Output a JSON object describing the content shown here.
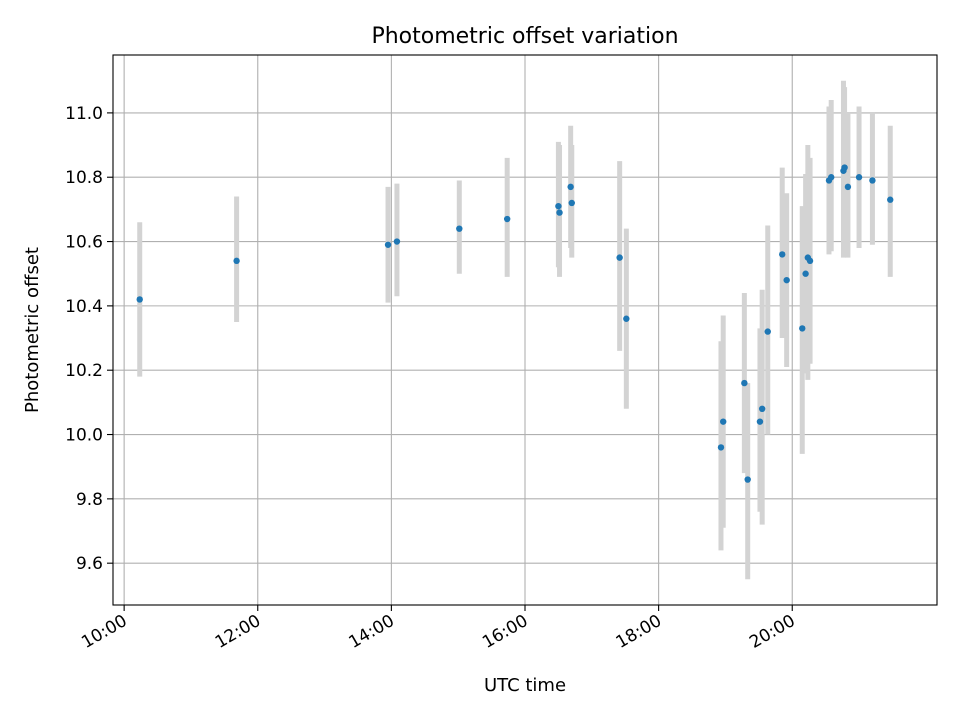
{
  "chart_data": {
    "type": "scatter",
    "title": "Photometric offset variation",
    "xlabel": "UTC time",
    "ylabel": "Photometric offset",
    "xlim": [
      "09:50",
      "22:10"
    ],
    "ylim": [
      9.47,
      11.18
    ],
    "xticks": [
      "10:00",
      "12:00",
      "14:00",
      "16:00",
      "18:00",
      "20:00"
    ],
    "yticks": [
      "9.6",
      "9.8",
      "10.0",
      "10.2",
      "10.4",
      "10.6",
      "10.8",
      "11.0"
    ],
    "grid": true,
    "colors": {
      "point": "#1f77b4",
      "errorbar": "#d3d3d3",
      "grid": "#b0b0b0"
    },
    "points": [
      {
        "x": "10:14",
        "y": 10.42,
        "ylow": 10.18,
        "yhigh": 10.66
      },
      {
        "x": "11:41",
        "y": 10.54,
        "ylow": 10.35,
        "yhigh": 10.74
      },
      {
        "x": "13:57",
        "y": 10.59,
        "ylow": 10.41,
        "yhigh": 10.77
      },
      {
        "x": "14:05",
        "y": 10.6,
        "ylow": 10.43,
        "yhigh": 10.78
      },
      {
        "x": "15:01",
        "y": 10.64,
        "ylow": 10.5,
        "yhigh": 10.79
      },
      {
        "x": "15:44",
        "y": 10.67,
        "ylow": 10.49,
        "yhigh": 10.86
      },
      {
        "x": "16:30",
        "y": 10.71,
        "ylow": 10.52,
        "yhigh": 10.91
      },
      {
        "x": "16:31",
        "y": 10.69,
        "ylow": 10.49,
        "yhigh": 10.9
      },
      {
        "x": "16:41",
        "y": 10.77,
        "ylow": 10.58,
        "yhigh": 10.96
      },
      {
        "x": "16:42",
        "y": 10.72,
        "ylow": 10.55,
        "yhigh": 10.9
      },
      {
        "x": "17:25",
        "y": 10.55,
        "ylow": 10.26,
        "yhigh": 10.85
      },
      {
        "x": "17:31",
        "y": 10.36,
        "ylow": 10.08,
        "yhigh": 10.64
      },
      {
        "x": "18:56",
        "y": 9.96,
        "ylow": 9.64,
        "yhigh": 10.29
      },
      {
        "x": "18:58",
        "y": 10.04,
        "ylow": 9.71,
        "yhigh": 10.37
      },
      {
        "x": "19:17",
        "y": 10.16,
        "ylow": 9.88,
        "yhigh": 10.44
      },
      {
        "x": "19:20",
        "y": 9.86,
        "ylow": 9.55,
        "yhigh": 10.16
      },
      {
        "x": "19:31",
        "y": 10.04,
        "ylow": 9.76,
        "yhigh": 10.33
      },
      {
        "x": "19:33",
        "y": 10.08,
        "ylow": 9.72,
        "yhigh": 10.45
      },
      {
        "x": "19:38",
        "y": 10.32,
        "ylow": 10.0,
        "yhigh": 10.65
      },
      {
        "x": "19:51",
        "y": 10.56,
        "ylow": 10.3,
        "yhigh": 10.83
      },
      {
        "x": "19:55",
        "y": 10.48,
        "ylow": 10.21,
        "yhigh": 10.75
      },
      {
        "x": "20:09",
        "y": 10.33,
        "ylow": 9.94,
        "yhigh": 10.71
      },
      {
        "x": "20:12",
        "y": 10.5,
        "ylow": 10.19,
        "yhigh": 10.81
      },
      {
        "x": "20:14",
        "y": 10.55,
        "ylow": 10.17,
        "yhigh": 10.9
      },
      {
        "x": "20:16",
        "y": 10.54,
        "ylow": 10.22,
        "yhigh": 10.86
      },
      {
        "x": "20:33",
        "y": 10.79,
        "ylow": 10.56,
        "yhigh": 11.02
      },
      {
        "x": "20:35",
        "y": 10.8,
        "ylow": 10.57,
        "yhigh": 11.04
      },
      {
        "x": "20:46",
        "y": 10.82,
        "ylow": 10.55,
        "yhigh": 11.1
      },
      {
        "x": "20:47",
        "y": 10.83,
        "ylow": 10.58,
        "yhigh": 11.08
      },
      {
        "x": "20:50",
        "y": 10.77,
        "ylow": 10.55,
        "yhigh": 11.0
      },
      {
        "x": "21:00",
        "y": 10.8,
        "ylow": 10.58,
        "yhigh": 11.02
      },
      {
        "x": "21:12",
        "y": 10.79,
        "ylow": 10.59,
        "yhigh": 11.0
      },
      {
        "x": "21:28",
        "y": 10.73,
        "ylow": 10.49,
        "yhigh": 10.96
      }
    ]
  }
}
